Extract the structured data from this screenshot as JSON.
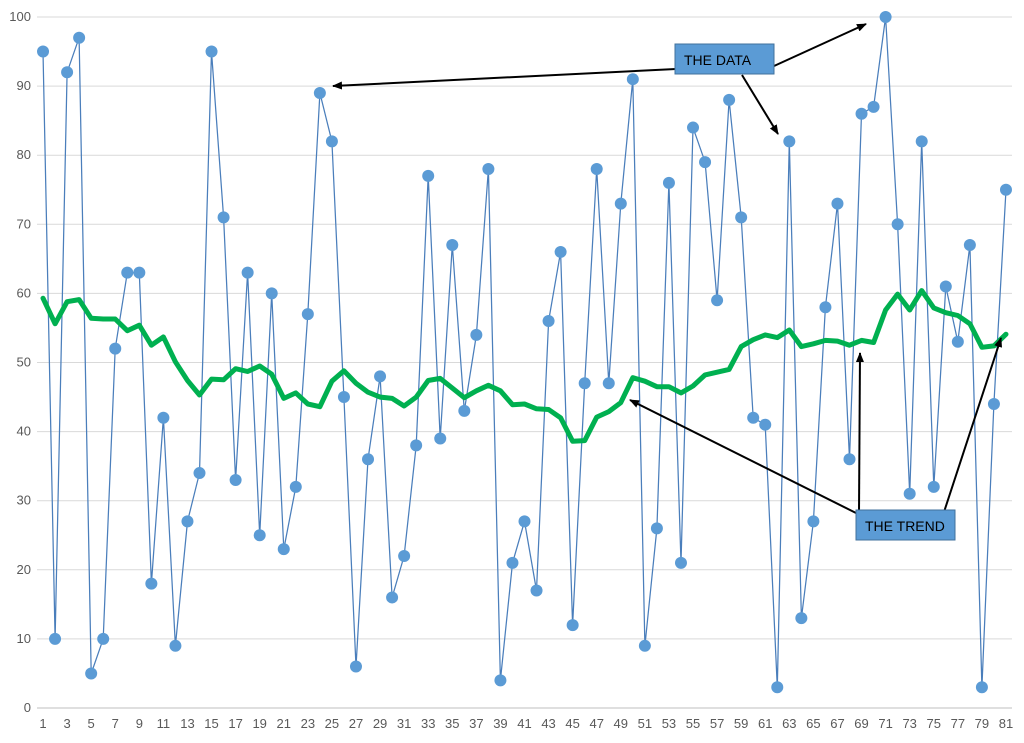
{
  "chart_data": {
    "type": "line",
    "x": [
      1,
      2,
      3,
      4,
      5,
      6,
      7,
      8,
      9,
      10,
      11,
      12,
      13,
      14,
      15,
      16,
      17,
      18,
      19,
      20,
      21,
      22,
      23,
      24,
      25,
      26,
      27,
      28,
      29,
      30,
      31,
      32,
      33,
      34,
      35,
      36,
      37,
      38,
      39,
      40,
      41,
      42,
      43,
      44,
      45,
      46,
      47,
      48,
      49,
      50,
      51,
      52,
      53,
      54,
      55,
      56,
      57,
      58,
      59,
      60,
      61,
      62,
      63,
      64,
      65,
      66,
      67,
      68,
      69,
      70,
      71,
      72,
      73,
      74,
      75,
      76,
      77,
      78,
      79,
      80,
      81
    ],
    "x_tick_labels": [
      "1",
      "3",
      "5",
      "7",
      "9",
      "11",
      "13",
      "15",
      "17",
      "19",
      "21",
      "23",
      "25",
      "27",
      "29",
      "31",
      "33",
      "35",
      "37",
      "39",
      "41",
      "43",
      "45",
      "47",
      "49",
      "51",
      "53",
      "55",
      "57",
      "59",
      "61",
      "63",
      "65",
      "67",
      "69",
      "71",
      "73",
      "75",
      "77",
      "79",
      "81"
    ],
    "y_tick_labels": [
      "0",
      "10",
      "20",
      "30",
      "40",
      "50",
      "60",
      "70",
      "80",
      "90",
      "100"
    ],
    "ylim": [
      0,
      100
    ],
    "xlim": [
      0.5,
      81.5
    ],
    "grid": "horizontal",
    "series": [
      {
        "role": "data",
        "color": "#4a7ebb",
        "marker_color": "#5b9bd5",
        "values": [
          95,
          10,
          92,
          97,
          5,
          10,
          52,
          63,
          63,
          18,
          42,
          9,
          27,
          34,
          95,
          71,
          33,
          63,
          25,
          60,
          23,
          32,
          57,
          89,
          82,
          45,
          6,
          36,
          48,
          16,
          22,
          38,
          77,
          39,
          67,
          43,
          54,
          78,
          4,
          21,
          27,
          17,
          56,
          66,
          12,
          47,
          78,
          47,
          73,
          91,
          9,
          26,
          76,
          21,
          84,
          79,
          59,
          88,
          71,
          42,
          41,
          3,
          82,
          13,
          27,
          58,
          73,
          36,
          86,
          87,
          100,
          70,
          31,
          82,
          32,
          61,
          53,
          67,
          3,
          44,
          75
        ]
      },
      {
        "role": "trend",
        "color": "#00b050",
        "values": [
          59.3,
          55.6,
          58.8,
          59.1,
          56.4,
          56.3,
          56.3,
          54.6,
          55.4,
          52.5,
          53.7,
          50.1,
          47.4,
          45.3,
          47.6,
          47.5,
          49.1,
          48.7,
          49.5,
          48.3,
          44.8,
          45.6,
          44.0,
          43.6,
          47.3,
          48.8,
          47.0,
          45.7,
          45.0,
          44.8,
          43.7,
          45.0,
          47.4,
          47.7,
          46.3,
          44.9,
          45.9,
          46.7,
          45.9,
          43.9,
          44.0,
          43.3,
          43.2,
          42.0,
          38.6,
          38.7,
          42.1,
          42.9,
          44.2,
          47.8,
          47.3,
          46.5,
          46.5,
          45.6,
          46.6,
          48.2,
          48.6,
          49.0,
          52.3,
          53.3,
          54.0,
          53.6,
          54.7,
          52.3,
          52.7,
          53.2,
          53.1,
          52.5,
          53.2,
          52.9,
          57.6,
          59.9,
          57.6,
          60.4,
          57.9,
          57.2,
          56.8,
          55.6,
          52.2,
          52.4,
          54.1
        ]
      }
    ]
  },
  "annotations": {
    "data_label": "THE DATA",
    "trend_label": "THE TREND"
  }
}
